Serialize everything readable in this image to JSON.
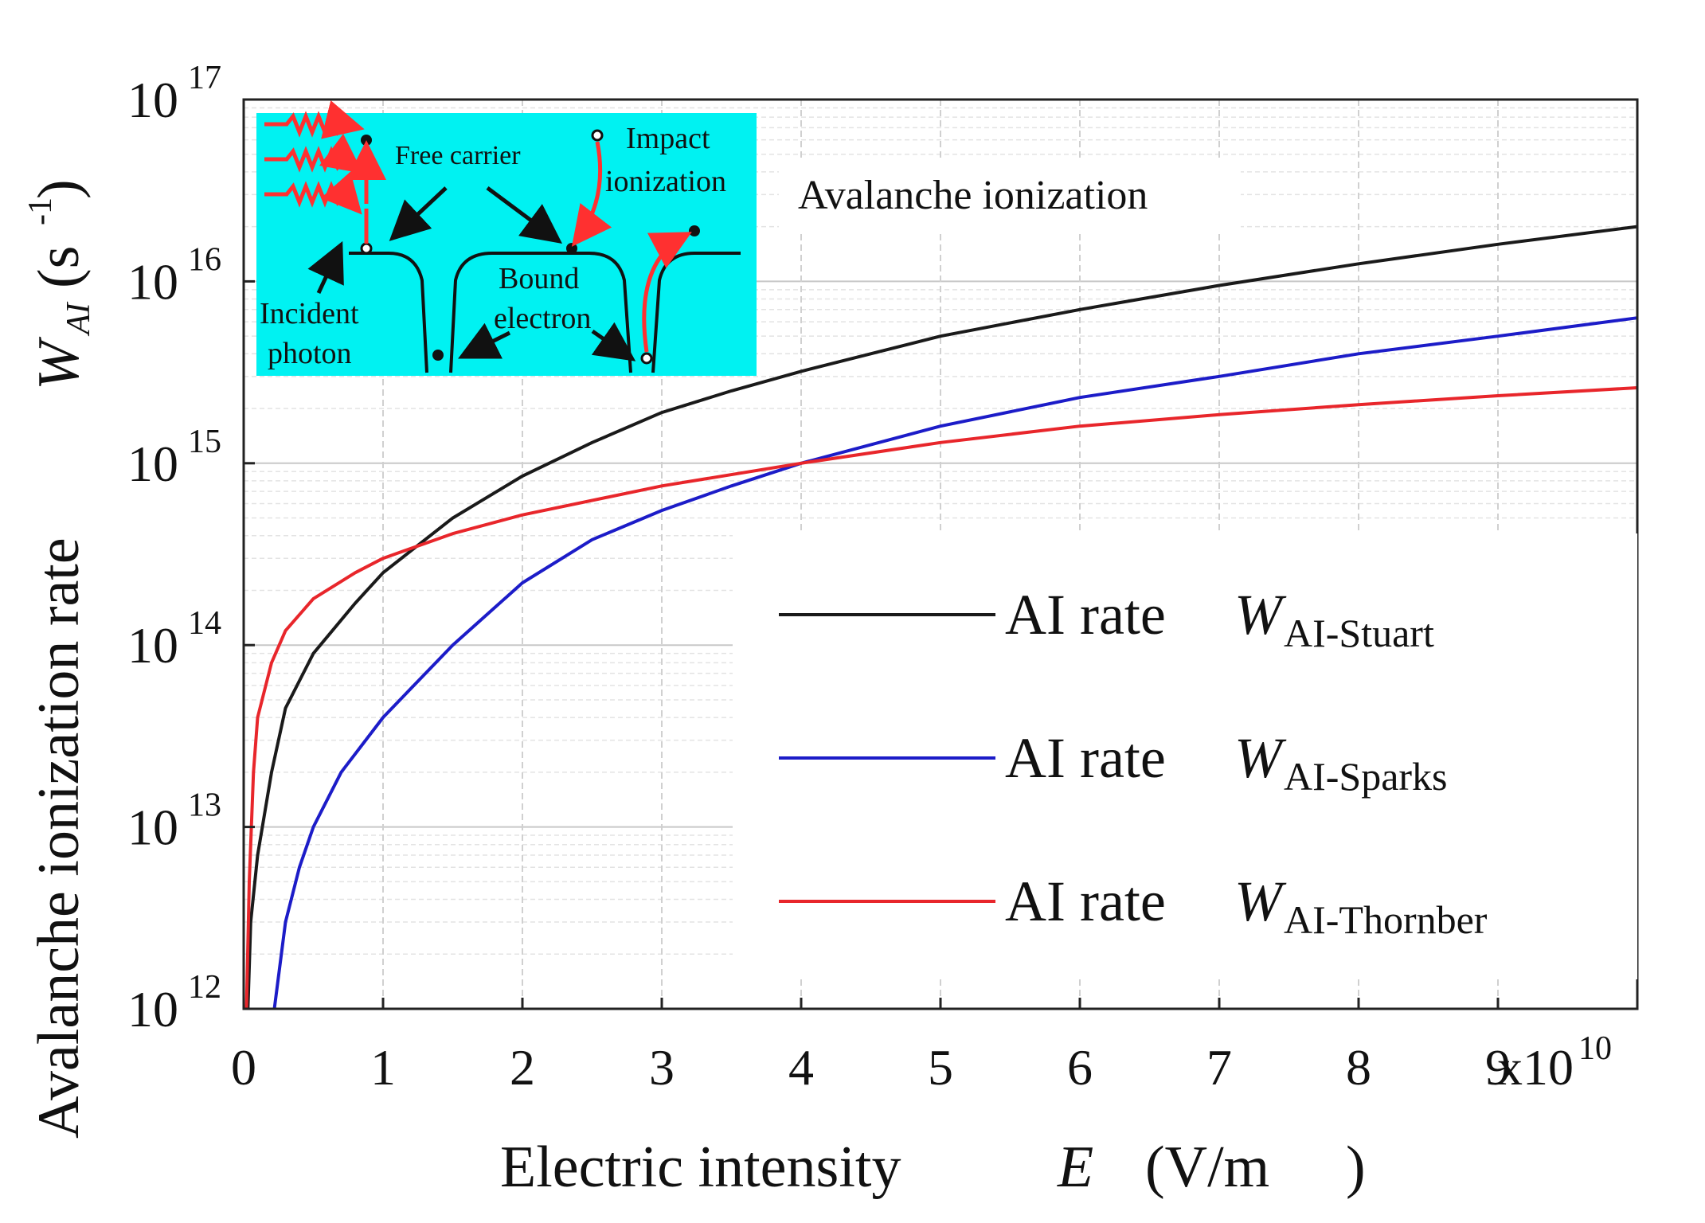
{
  "chart_data": {
    "type": "line",
    "title": "",
    "xlabel": "Electric intensity",
    "xlabel_symbol": "E",
    "xlabel_unit": "(V/m",
    "xlabel_unit_close": ")",
    "ylabel": "Avalanche ionization rate",
    "ylabel_symbol": "W",
    "ylabel_symbol_sub": "AI",
    "ylabel_unit": "(s",
    "ylabel_unit_sup": "-1",
    "ylabel_unit_close": ")",
    "x_scale_base": "x10",
    "x_scale_exp": "10",
    "xlim": [
      0,
      10
    ],
    "ylim_log10": [
      12,
      17
    ],
    "yscale": "log",
    "x_ticks": [
      "0",
      "1",
      "2",
      "3",
      "4",
      "5",
      "6",
      "7",
      "8",
      "9"
    ],
    "y_tick_base": "10",
    "y_tick_exps": [
      "12",
      "13",
      "14",
      "15",
      "16",
      "17"
    ],
    "grid": true,
    "annotation": "Avalanche ionization",
    "legend_position": "center-right",
    "legend_prefix": "AI rate",
    "legend_symbol": "W",
    "series": [
      {
        "name": "AI rate W AI-Stuart",
        "subscript": "AI-Stuart",
        "color": "#1a1a1a",
        "x": [
          0.03,
          0.05,
          0.1,
          0.2,
          0.3,
          0.5,
          0.8,
          1.0,
          1.5,
          2.0,
          2.5,
          3.0,
          3.5,
          4.0,
          5.0,
          6.0,
          7.0,
          8.0,
          9.0,
          10.0
        ],
        "y": [
          1000000000000.0,
          3000000000000.0,
          7000000000000.0,
          20000000000000.0,
          45000000000000.0,
          90000000000000.0,
          170000000000000.0,
          250000000000000.0,
          500000000000000.0,
          850000000000000.0,
          1300000000000000.0,
          1900000000000000.0,
          2500000000000000.0,
          3200000000000000.0,
          5000000000000000.0,
          7000000000000000.0,
          9500000000000000.0,
          1.25e+16,
          1.6e+16,
          2e+16
        ]
      },
      {
        "name": "AI rate W AI-Sparks",
        "subscript": "AI-Sparks",
        "color": "#1c1cc8",
        "x": [
          0.22,
          0.3,
          0.4,
          0.5,
          0.7,
          1.0,
          1.5,
          2.0,
          2.5,
          3.0,
          3.5,
          4.0,
          5.0,
          6.0,
          7.0,
          8.0,
          9.0,
          10.0
        ],
        "y": [
          1000000000000.0,
          3000000000000.0,
          6000000000000.0,
          10000000000000.0,
          20000000000000.0,
          40000000000000.0,
          100000000000000.0,
          220000000000000.0,
          380000000000000.0,
          550000000000000.0,
          750000000000000.0,
          1000000000000000.0,
          1600000000000000.0,
          2300000000000000.0,
          3000000000000000.0,
          4000000000000000.0,
          5000000000000000.0,
          6300000000000000.0
        ]
      },
      {
        "name": "AI rate W AI-Thornber",
        "subscript": "AI-Thornber",
        "color": "#e8262b",
        "x": [
          0.02,
          0.04,
          0.07,
          0.1,
          0.2,
          0.3,
          0.5,
          0.8,
          1.0,
          1.5,
          2.0,
          3.0,
          4.0,
          5.0,
          6.0,
          7.0,
          8.0,
          9.0,
          10.0
        ],
        "y": [
          1000000000000.0,
          5000000000000.0,
          20000000000000.0,
          40000000000000.0,
          80000000000000.0,
          120000000000000.0,
          180000000000000.0,
          250000000000000.0,
          300000000000000.0,
          410000000000000.0,
          520000000000000.0,
          750000000000000.0,
          1000000000000000.0,
          1300000000000000.0,
          1600000000000000.0,
          1850000000000000.0,
          2100000000000000.0,
          2350000000000000.0,
          2600000000000000.0
        ]
      }
    ]
  },
  "inset": {
    "free_carrier": "Free carrier",
    "impact_line1": "Impact",
    "impact_line2": "ionization",
    "bound_line1": "Bound",
    "bound_line2": "electron",
    "incident_line1": "Incident",
    "incident_line2": "photon",
    "background_color": "#00f2f2",
    "photon_color": "#ff3030"
  }
}
